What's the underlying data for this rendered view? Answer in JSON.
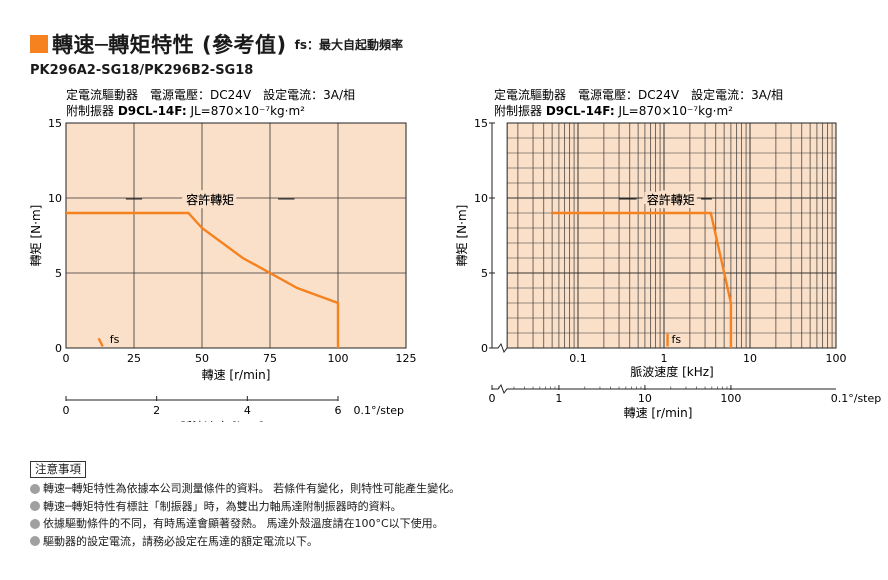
{
  "header": {
    "title": "轉速─轉矩特性 (參考值)",
    "fs_note": "fs：最大自起動頻率",
    "model": "PK296A2-SG18/PK296B2-SG18"
  },
  "conditions": {
    "line1": "定電流驅動器　電源電壓：DC24V　設定電流：3A/相",
    "line2_prefix": "附制振器 ",
    "line2_bold": "D9CL-14F:",
    "line2_value": " JL=870×10⁻⁷kg·m²"
  },
  "chart_data": [
    {
      "type": "line",
      "xscale": "linear",
      "xlabel": "轉速 [r/min]",
      "ylabel": "轉矩 [N·m]",
      "xlim": [
        0,
        125
      ],
      "ylim": [
        0,
        15
      ],
      "xticks": [
        "0",
        "25",
        "50",
        "75",
        "100",
        "125"
      ],
      "yticks": [
        "0",
        "5",
        "10",
        "15"
      ],
      "secondary_axis": {
        "label": "脈波速度 [kHz]",
        "unit": "0.1°/step",
        "ticks": [
          "0",
          "2",
          "4",
          "6"
        ]
      },
      "series": [
        {
          "name": "容許轉矩",
          "x": [
            0,
            45,
            50,
            65,
            85,
            100,
            100
          ],
          "y": [
            9,
            9,
            8,
            6,
            4,
            3,
            0
          ]
        }
      ],
      "fs_label": "fs",
      "fs_x": 13.5,
      "grid": true,
      "background": "#fbe0c9",
      "line_color": "#f5821f"
    },
    {
      "type": "line",
      "xscale": "log",
      "xlabel": "脈波速度 [kHz]",
      "ylabel": "轉矩 [N·m]",
      "xlim": [
        0.01,
        100
      ],
      "ylim": [
        0,
        15
      ],
      "xticks": [
        "0.1",
        "1",
        "10",
        "100"
      ],
      "yticks": [
        "0",
        "5",
        "10",
        "15"
      ],
      "secondary_axis": {
        "label": "轉速 [r/min]",
        "unit": "0.1°/step",
        "ticks": [
          "0",
          "1",
          "10",
          "100"
        ]
      },
      "series": [
        {
          "name": "容許轉矩",
          "x": [
            0.05,
            3.5,
            6,
            6
          ],
          "y": [
            9,
            9,
            3,
            0
          ]
        }
      ],
      "fs_label": "fs",
      "fs_x": 1.1,
      "grid": true,
      "background": "#fbe0c9",
      "line_color": "#f5821f"
    }
  ],
  "notes": {
    "title": "注意事項",
    "items": [
      "轉速─轉矩特性為依據本公司測量條件的資料。 若條件有變化，則特性可能產生變化。",
      "轉速─轉矩特性有標註「制振器」時，為雙出力軸馬達附制振器時的資料。",
      "依據驅動條件的不同，有時馬達會顯著發熱。 馬達外殼溫度請在100°C以下使用。",
      "驅動器的設定電流，請務必設定在馬達的額定電流以下。"
    ]
  }
}
